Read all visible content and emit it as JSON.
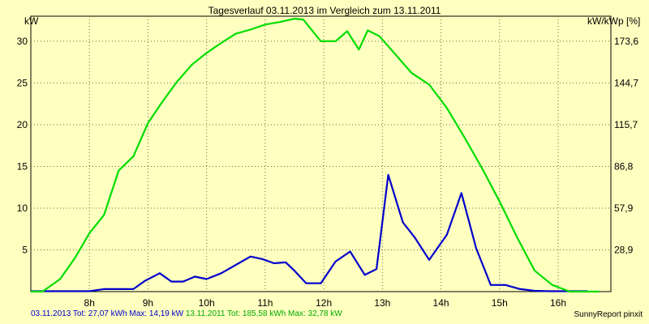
{
  "chart_data": {
    "type": "line",
    "title": "Tagesverlauf 03.11.2013 im Vergleich zum 13.11.2011",
    "ylabel_left": "kW",
    "ylabel_right": "kW/kWp [%]",
    "x_ticks": [
      "8h",
      "9h",
      "10h",
      "11h",
      "12h",
      "13h",
      "14h",
      "15h",
      "16h"
    ],
    "x_tick_hours": [
      8,
      9,
      10,
      11,
      12,
      13,
      14,
      15,
      16
    ],
    "xlim": [
      7.0,
      16.9
    ],
    "ylim": [
      0,
      33
    ],
    "y_ticks_left": [
      "5",
      "10",
      "15",
      "20",
      "25",
      "30"
    ],
    "y_tick_values_left": [
      5,
      10,
      15,
      20,
      25,
      30
    ],
    "y_ticks_right": [
      "28,9",
      "57,9",
      "86,8",
      "115,7",
      "144,7",
      "173,6"
    ],
    "y_tick_values_right": [
      5,
      10,
      15,
      20,
      25,
      30
    ],
    "grid": true,
    "series": [
      {
        "name": "03.11.2013",
        "color": "#0000cc",
        "x": [
          7.0,
          7.5,
          8.0,
          8.25,
          8.5,
          8.75,
          8.95,
          9.2,
          9.4,
          9.6,
          9.8,
          10.0,
          10.25,
          10.5,
          10.75,
          10.95,
          11.15,
          11.35,
          11.5,
          11.7,
          11.95,
          12.2,
          12.45,
          12.7,
          12.9,
          13.1,
          13.35,
          13.55,
          13.8,
          14.1,
          14.35,
          14.6,
          14.85,
          15.1,
          15.35,
          15.6,
          15.85,
          16.1,
          16.5
        ],
        "values": [
          0.05,
          0.05,
          0.05,
          0.3,
          0.3,
          0.3,
          1.3,
          2.2,
          1.2,
          1.2,
          1.8,
          1.5,
          2.2,
          3.2,
          4.2,
          3.9,
          3.4,
          3.5,
          2.5,
          1.0,
          1.0,
          3.6,
          4.8,
          2.0,
          2.7,
          14.0,
          8.3,
          6.5,
          3.8,
          6.8,
          11.8,
          5.2,
          0.8,
          0.8,
          0.3,
          0.1,
          0.05,
          0.05,
          0.05
        ],
        "summary": "03.11.2013 Tot: 27,07 kWh Max: 14,19 kW"
      },
      {
        "name": "13.11.2011",
        "color": "#00dd00",
        "x": [
          7.0,
          7.2,
          7.5,
          7.75,
          8.0,
          8.25,
          8.5,
          8.75,
          9.0,
          9.25,
          9.5,
          9.75,
          10.0,
          10.25,
          10.5,
          10.75,
          11.0,
          11.25,
          11.5,
          11.65,
          11.95,
          12.2,
          12.4,
          12.6,
          12.75,
          12.95,
          13.2,
          13.5,
          13.8,
          14.1,
          14.4,
          14.7,
          15.0,
          15.3,
          15.6,
          15.9,
          16.2,
          16.5,
          16.7
        ],
        "values": [
          0.0,
          0.0,
          1.5,
          4.0,
          7.0,
          9.2,
          14.5,
          16.2,
          20.2,
          22.8,
          25.2,
          27.2,
          28.6,
          29.8,
          30.9,
          31.4,
          32.0,
          32.3,
          32.7,
          32.6,
          30.0,
          30.0,
          31.2,
          29.0,
          31.3,
          30.6,
          28.6,
          26.2,
          24.8,
          22.0,
          18.5,
          14.8,
          10.8,
          6.5,
          2.5,
          0.8,
          0.0,
          0.0,
          0.0
        ],
        "summary": "13.11.2011 Tot: 185,58 kWh Max: 32,78 kW"
      }
    ]
  },
  "footer": {
    "series1": "03.11.2013 Tot: 27,07 kWh Max: 14,19 kW",
    "series2": "13.11.2011 Tot: 185,58 kWh Max: 32,78 kW",
    "brand": "SunnyReport pinxit"
  }
}
